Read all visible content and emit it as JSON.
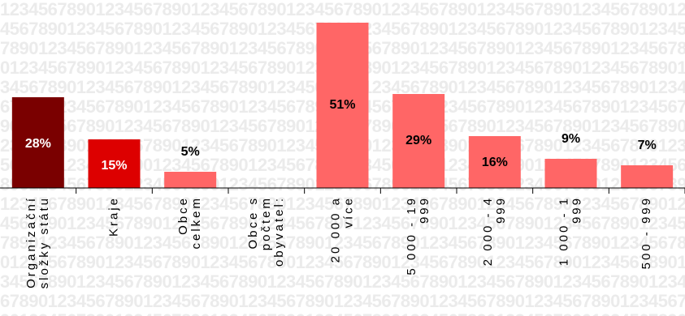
{
  "background_text": "1234567890",
  "chart_data": {
    "type": "bar",
    "categories": [
      [
        "Organizační",
        "složky státu"
      ],
      [
        "Kraje"
      ],
      [
        "Obce",
        "celkem"
      ],
      [
        "Obce s",
        "počtem",
        "obyvatel:"
      ],
      [
        "20 000 a",
        "více"
      ],
      [
        "5 000 - 19",
        "999"
      ],
      [
        "2 000 - 4",
        "999"
      ],
      [
        "1 000 - 1",
        "999"
      ],
      [
        "500 - 999"
      ]
    ],
    "values": [
      28,
      15,
      5,
      null,
      51,
      29,
      16,
      9,
      7
    ],
    "value_labels": [
      "28%",
      "15%",
      "5%",
      "",
      "51%",
      "29%",
      "16%",
      "9%",
      "7%"
    ],
    "colors": [
      "#7a0000",
      "#dd0000",
      "#ff6666",
      "#ff6666",
      "#ff6666",
      "#ff6666",
      "#ff6666",
      "#ff6666",
      "#ff6666"
    ],
    "label_colors": [
      "#ffffff",
      "#ffffff",
      "#000000",
      "#000000",
      "#000000",
      "#000000",
      "#000000",
      "#000000",
      "#000000"
    ],
    "ylim": [
      0,
      55
    ],
    "grid": false,
    "legend": "none",
    "title": "",
    "xlabel": "",
    "ylabel": ""
  }
}
